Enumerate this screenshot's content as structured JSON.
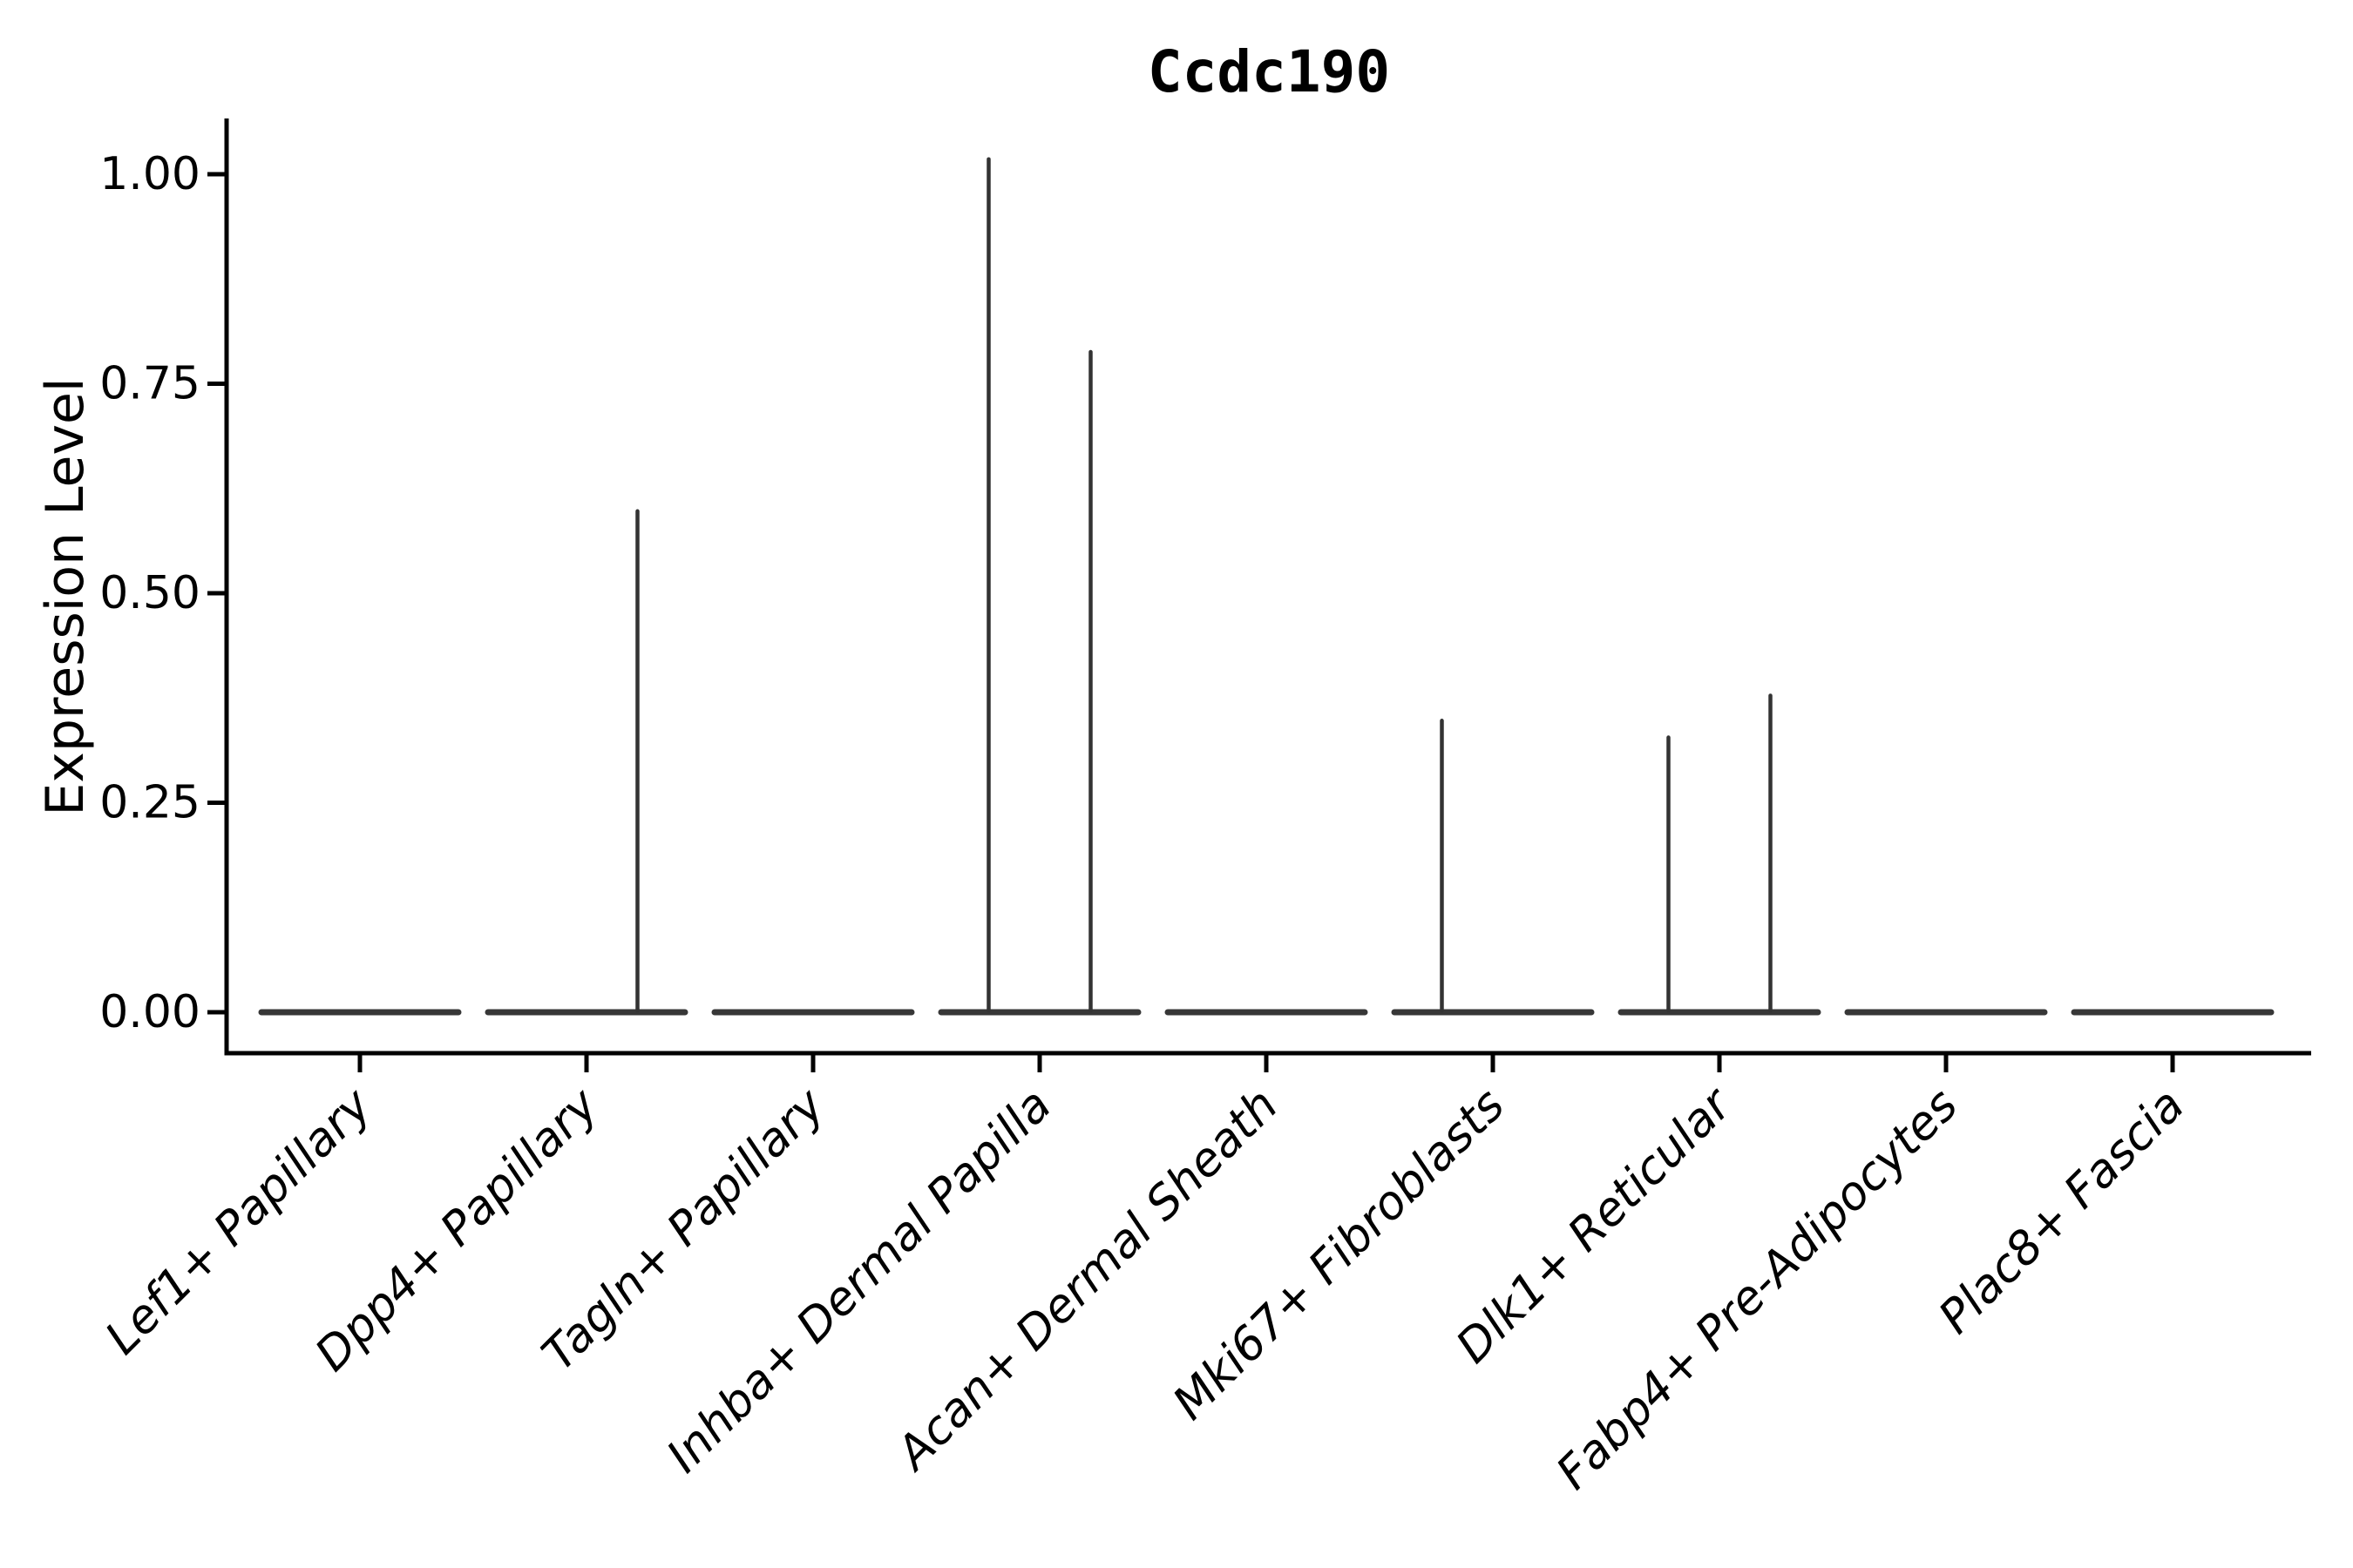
{
  "chart_data": {
    "type": "violin",
    "title": "Ccdc190",
    "ylabel": "Expression Level",
    "xlabel": "",
    "legend": "none",
    "grid": false,
    "background_color": "#ffffff",
    "violin_color": "#373737",
    "axis_color": "#000000",
    "ylim": [
      -0.05,
      1.07
    ],
    "yticks": [
      0,
      0.25,
      0.5,
      0.75,
      1.0
    ],
    "ytick_labels": [
      "0.00",
      "0.25",
      "0.50",
      "0.75",
      "1.00"
    ],
    "violins_per_category": 2,
    "categories": [
      "Lef1+ Papillary",
      "Dpp4+ Papillary",
      "Tagln+ Papillary",
      "Inhba+ Dermal Papilla",
      "Acan+ Dermal Sheath",
      "Mki67+ Fibroblasts",
      "Dlk1+ Reticular",
      "Fabp4+ Pre-Adipocytes",
      "Plac8+ Fascia"
    ],
    "series": [
      {
        "name": "Lef1+ Papillary",
        "spike_max": [
          null,
          null
        ]
      },
      {
        "name": "Dpp4+ Papillary",
        "spike_max": [
          null,
          0.6
        ]
      },
      {
        "name": "Tagln+ Papillary",
        "spike_max": [
          null,
          null
        ]
      },
      {
        "name": "Inhba+ Dermal Papilla",
        "spike_max": [
          1.02,
          0.79
        ]
      },
      {
        "name": "Acan+ Dermal Sheath",
        "spike_max": [
          null,
          null
        ]
      },
      {
        "name": "Mki67+ Fibroblasts",
        "spike_max": [
          0.35,
          null
        ]
      },
      {
        "name": "Dlk1+ Reticular",
        "spike_max": [
          0.33,
          0.38
        ]
      },
      {
        "name": "Fabp4+ Pre-Adipocytes",
        "spike_max": [
          null,
          null
        ]
      },
      {
        "name": "Plac8+ Fascia",
        "spike_max": [
          null,
          null
        ]
      }
    ],
    "baseline_value": 0.0
  }
}
